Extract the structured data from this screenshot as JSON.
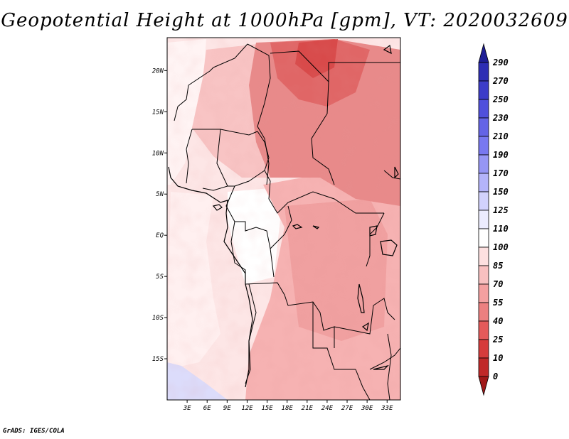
{
  "title": "Geopotential Height at 1000hPa [gpm], VT: 2020032609",
  "footer": "GrADS: IGES/COLA",
  "map": {
    "lon_range": [
      0,
      35
    ],
    "lat_range": [
      -20,
      24
    ],
    "lat_ticks": [
      {
        "value": 20,
        "label": "20N"
      },
      {
        "value": 15,
        "label": "15N"
      },
      {
        "value": 10,
        "label": "10N"
      },
      {
        "value": 5,
        "label": "5N"
      },
      {
        "value": 0,
        "label": "EQ"
      },
      {
        "value": -5,
        "label": "5S"
      },
      {
        "value": -10,
        "label": "10S"
      },
      {
        "value": -15,
        "label": "15S"
      }
    ],
    "lon_ticks": [
      {
        "value": 3,
        "label": "3E"
      },
      {
        "value": 6,
        "label": "6E"
      },
      {
        "value": 9,
        "label": "9E"
      },
      {
        "value": 12,
        "label": "12E"
      },
      {
        "value": 15,
        "label": "15E"
      },
      {
        "value": 18,
        "label": "18E"
      },
      {
        "value": 21,
        "label": "21E"
      },
      {
        "value": 24,
        "label": "24E"
      },
      {
        "value": 27,
        "label": "27E"
      },
      {
        "value": 30,
        "label": "30E"
      },
      {
        "value": 33,
        "label": "33E"
      }
    ]
  },
  "colorbar": {
    "labels": [
      "290",
      "270",
      "250",
      "230",
      "210",
      "190",
      "170",
      "150",
      "125",
      "110",
      "100",
      "85",
      "70",
      "55",
      "40",
      "25",
      "10",
      "0"
    ],
    "colors": [
      "#1e1e96",
      "#2d2db4",
      "#3c3cc8",
      "#5050dc",
      "#6464e6",
      "#7878f0",
      "#9696f5",
      "#b4b4fa",
      "#d2d2fd",
      "#ececfe",
      "#ffffff",
      "#fde0e0",
      "#f8c0c0",
      "#f4a0a0",
      "#ec8080",
      "#e45a5a",
      "#d63c3c",
      "#c02828",
      "#a01818"
    ]
  }
}
